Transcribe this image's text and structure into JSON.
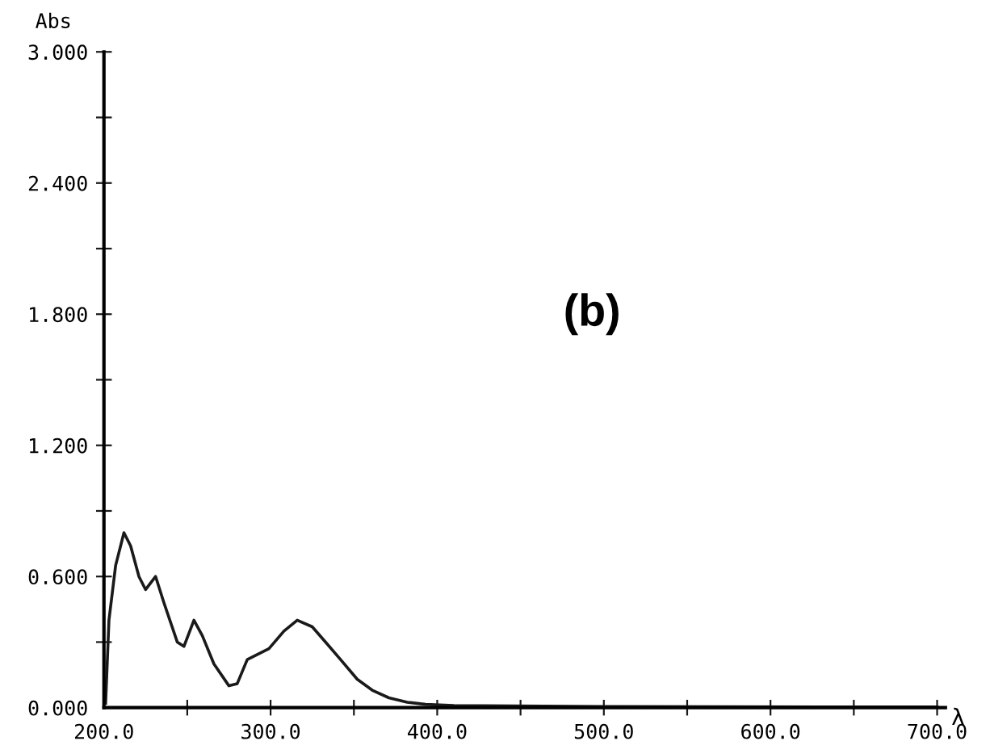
{
  "chart_data": {
    "type": "line",
    "xlabel": "λ",
    "ylabel": "Abs",
    "annotations": [
      "(b)"
    ],
    "x": [
      201,
      203,
      207,
      212,
      216,
      221,
      225,
      231,
      236,
      244,
      248,
      254,
      259,
      266,
      275,
      280,
      286,
      299,
      308,
      316,
      325,
      333,
      342,
      352,
      361,
      371,
      382,
      393,
      410,
      500,
      700
    ],
    "series": [
      {
        "color": "#1a1a1a",
        "values": [
          0.02,
          0.4,
          0.65,
          0.8,
          0.74,
          0.6,
          0.54,
          0.6,
          0.48,
          0.3,
          0.28,
          0.4,
          0.33,
          0.2,
          0.1,
          0.11,
          0.22,
          0.27,
          0.35,
          0.4,
          0.37,
          0.3,
          0.22,
          0.13,
          0.08,
          0.045,
          0.025,
          0.015,
          0.01,
          0.005,
          0.003
        ]
      }
    ],
    "xlim": [
      200,
      705
    ],
    "ylim": [
      0,
      3
    ],
    "xticks": [
      {
        "value": 200,
        "label": "200.0"
      },
      {
        "value": 250,
        "label": null
      },
      {
        "value": 300,
        "label": "300.0"
      },
      {
        "value": 350,
        "label": null
      },
      {
        "value": 400,
        "label": "400.0"
      },
      {
        "value": 450,
        "label": null
      },
      {
        "value": 500,
        "label": "500.0"
      },
      {
        "value": 550,
        "label": null
      },
      {
        "value": 600,
        "label": "600.0"
      },
      {
        "value": 650,
        "label": null
      },
      {
        "value": 700,
        "label": "700.0"
      }
    ],
    "yticks": [
      {
        "value": 0,
        "label": "0.000"
      },
      {
        "value": 0.3,
        "label": null
      },
      {
        "value": 0.6,
        "label": "0.600"
      },
      {
        "value": 0.9,
        "label": null
      },
      {
        "value": 1.2,
        "label": "1.200"
      },
      {
        "value": 1.5,
        "label": null
      },
      {
        "value": 1.8,
        "label": "1.800"
      },
      {
        "value": 2.1,
        "label": null
      },
      {
        "value": 2.4,
        "label": "2.400"
      },
      {
        "value": 2.7,
        "label": null
      },
      {
        "value": 3,
        "label": "3.000"
      }
    ],
    "grid": false,
    "legend": false,
    "marker": "none",
    "line_style": "solid"
  }
}
